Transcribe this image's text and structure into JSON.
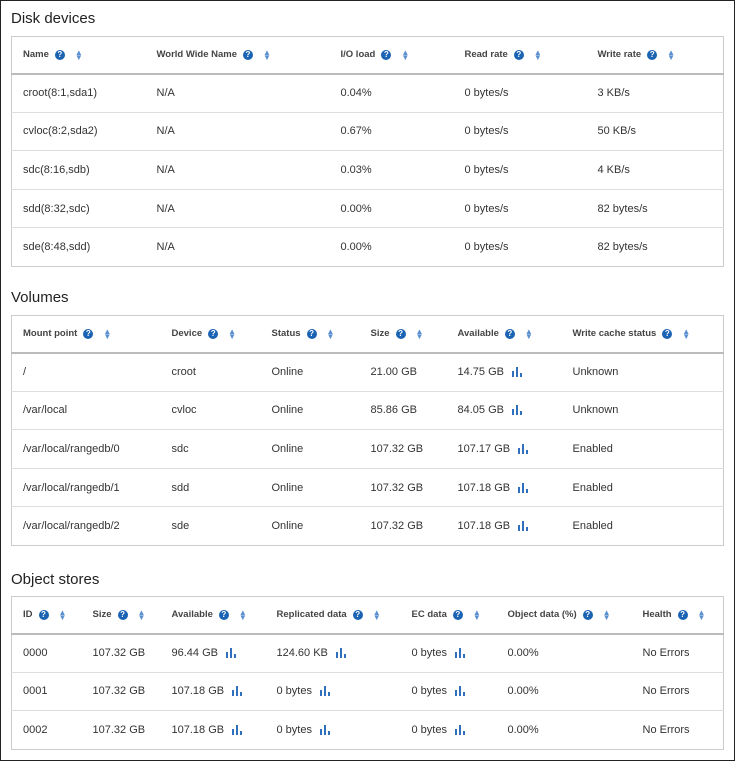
{
  "disk_devices": {
    "title": "Disk devices",
    "headers": [
      "Name",
      "World Wide Name",
      "I/O load",
      "Read rate",
      "Write rate"
    ],
    "rows": [
      [
        "croot(8:1,sda1)",
        "N/A",
        "0.04%",
        "0 bytes/s",
        "3 KB/s"
      ],
      [
        "cvloc(8:2,sda2)",
        "N/A",
        "0.67%",
        "0 bytes/s",
        "50 KB/s"
      ],
      [
        "sdc(8:16,sdb)",
        "N/A",
        "0.03%",
        "0 bytes/s",
        "4 KB/s"
      ],
      [
        "sdd(8:32,sdc)",
        "N/A",
        "0.00%",
        "0 bytes/s",
        "82 bytes/s"
      ],
      [
        "sde(8:48,sdd)",
        "N/A",
        "0.00%",
        "0 bytes/s",
        "82 bytes/s"
      ]
    ]
  },
  "volumes": {
    "title": "Volumes",
    "headers": [
      "Mount point",
      "Device",
      "Status",
      "Size",
      "Available",
      "Write cache status"
    ],
    "rows": [
      [
        "/",
        "croot",
        "Online",
        "21.00 GB",
        "14.75 GB",
        "Unknown"
      ],
      [
        "/var/local",
        "cvloc",
        "Online",
        "85.86 GB",
        "84.05 GB",
        "Unknown"
      ],
      [
        "/var/local/rangedb/0",
        "sdc",
        "Online",
        "107.32 GB",
        "107.17 GB",
        "Enabled"
      ],
      [
        "/var/local/rangedb/1",
        "sdd",
        "Online",
        "107.32 GB",
        "107.18 GB",
        "Enabled"
      ],
      [
        "/var/local/rangedb/2",
        "sde",
        "Online",
        "107.32 GB",
        "107.18 GB",
        "Enabled"
      ]
    ],
    "chart_columns": [
      4
    ]
  },
  "object_stores": {
    "title": "Object stores",
    "headers": [
      "ID",
      "Size",
      "Available",
      "Replicated data",
      "EC data",
      "Object data (%)",
      "Health"
    ],
    "rows": [
      [
        "0000",
        "107.32 GB",
        "96.44 GB",
        "124.60 KB",
        "0 bytes",
        "0.00%",
        "No Errors"
      ],
      [
        "0001",
        "107.32 GB",
        "107.18 GB",
        "0 bytes",
        "0 bytes",
        "0.00%",
        "No Errors"
      ],
      [
        "0002",
        "107.32 GB",
        "107.18 GB",
        "0 bytes",
        "0 bytes",
        "0.00%",
        "No Errors"
      ]
    ],
    "chart_columns": [
      2,
      3,
      4
    ]
  },
  "icons": {
    "help": "help-circle-icon",
    "sort": "sort-icon",
    "chart": "bar-chart-icon"
  },
  "colors": {
    "accent": "#1b63b3"
  }
}
